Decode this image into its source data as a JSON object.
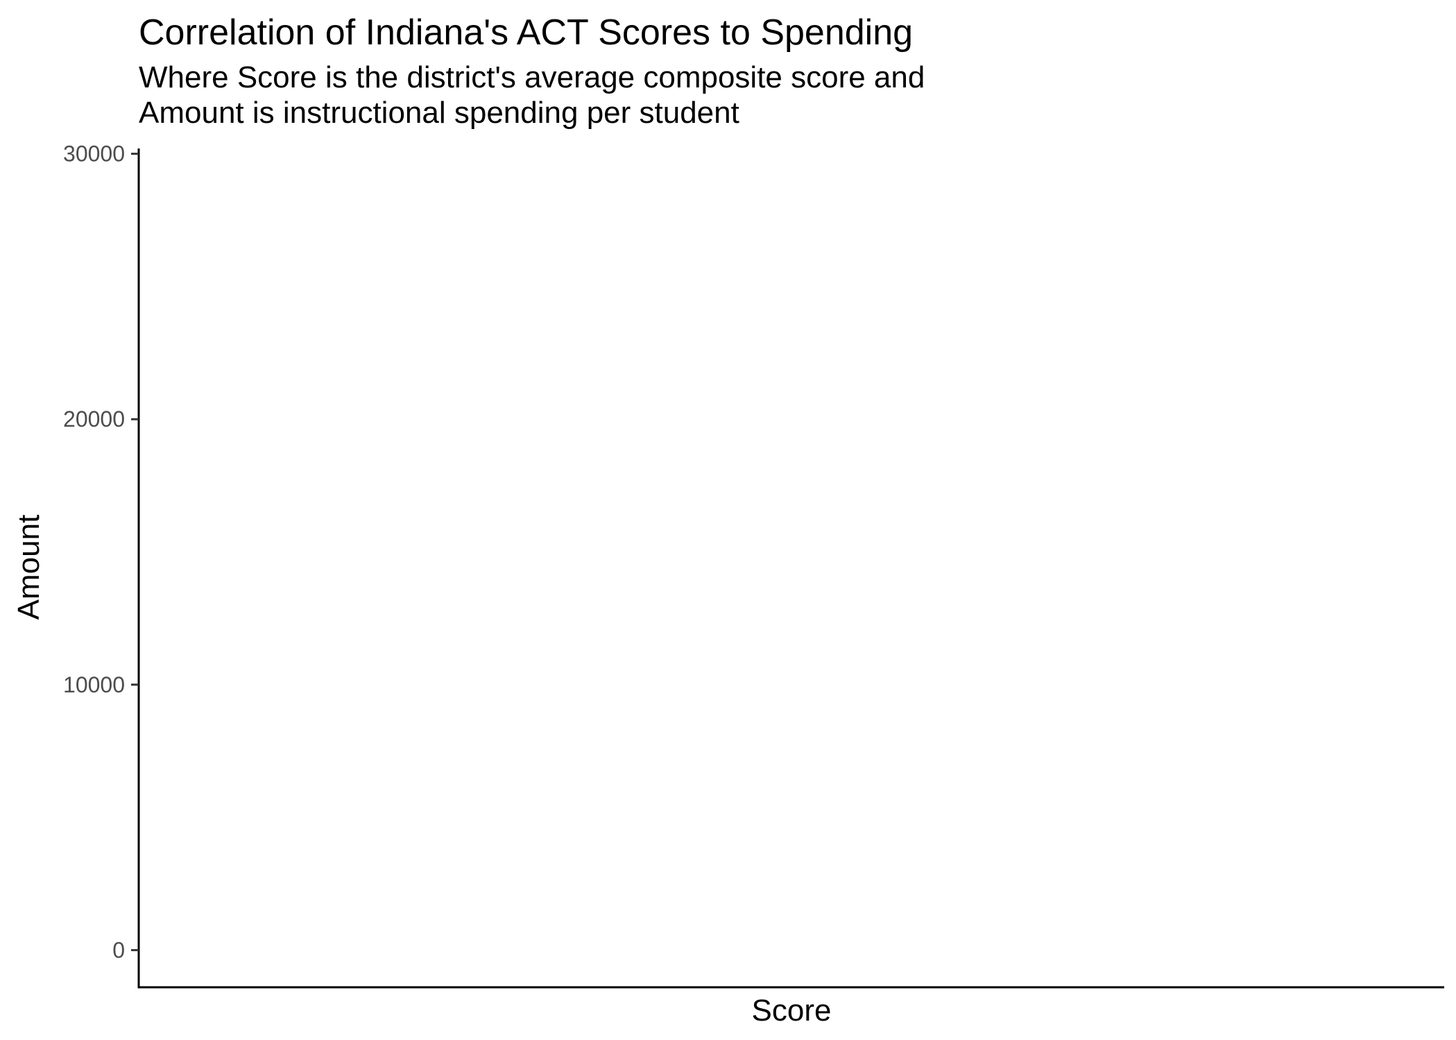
{
  "chart_data": {
    "type": "scatter",
    "title": "Correlation of Indiana's ACT Scores to Spending",
    "subtitle_lines": [
      "Where Score is the district's average composite score and",
      "Amount is instructional spending per student"
    ],
    "xlabel": "Score",
    "ylabel": "Amount",
    "x": [],
    "y": [],
    "ylim": [
      -1400,
      30200
    ],
    "yticks": [
      0,
      10000,
      20000,
      30000
    ],
    "ytick_labels": [
      "0",
      "10000",
      "20000",
      "30000"
    ],
    "xticks": [],
    "grid": false,
    "legend": "none"
  }
}
